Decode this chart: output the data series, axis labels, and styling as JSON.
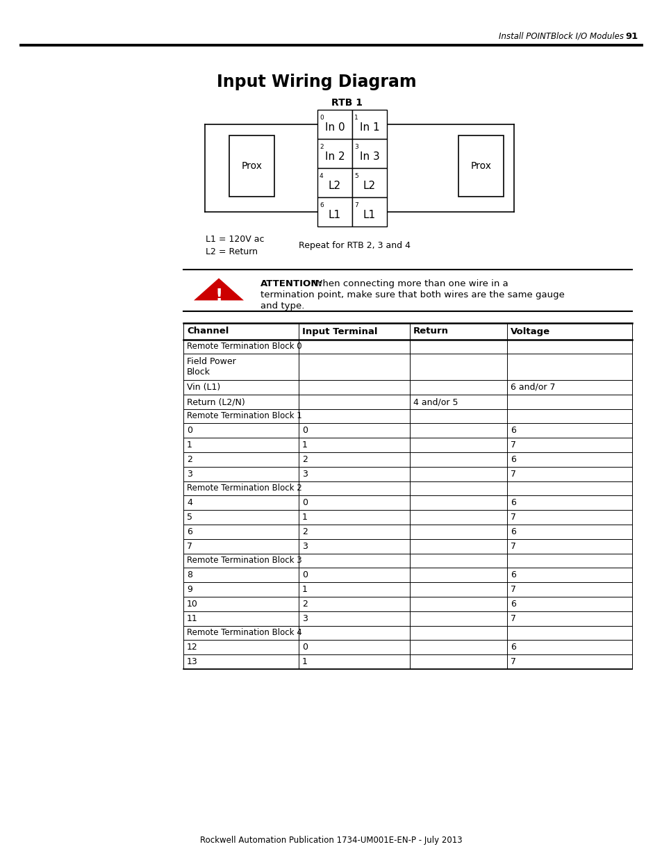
{
  "page_header_text": "Install POINTBlock I/O Modules",
  "page_number": "91",
  "title": "Input Wiring Diagram",
  "rtb_label": "RTB 1",
  "cells": [
    {
      "num": "0",
      "label": "In 0",
      "col": 0,
      "row": 0
    },
    {
      "num": "1",
      "label": "In 1",
      "col": 1,
      "row": 0
    },
    {
      "num": "2",
      "label": "In 2",
      "col": 0,
      "row": 1
    },
    {
      "num": "3",
      "label": "In 3",
      "col": 1,
      "row": 1
    },
    {
      "num": "4",
      "label": "L2",
      "col": 0,
      "row": 2
    },
    {
      "num": "5",
      "label": "L2",
      "col": 1,
      "row": 2
    },
    {
      "num": "6",
      "label": "L1",
      "col": 0,
      "row": 3
    },
    {
      "num": "7",
      "label": "L1",
      "col": 1,
      "row": 3
    }
  ],
  "legend_lines": [
    "L1 = 120V ac",
    "L2 = Return"
  ],
  "repeat_text": "Repeat for RTB 2, 3 and 4",
  "attention_bold": "ATTENTION:",
  "attention_rest": " When connecting more than one wire in a",
  "attention_line2": "termination point, make sure that both wires are the same gauge",
  "attention_line3": "and type.",
  "table_headers": [
    "Channel",
    "Input Terminal",
    "Return",
    "Voltage"
  ],
  "table_data": [
    {
      "type": "section",
      "text": "Remote Termination Block 0"
    },
    {
      "type": "row",
      "cols": [
        "Field Power\nBlock",
        "",
        "",
        ""
      ],
      "multiline": true
    },
    {
      "type": "row",
      "cols": [
        "Vin (L1)",
        "",
        "",
        "6 and/or 7"
      ],
      "multiline": false
    },
    {
      "type": "row",
      "cols": [
        "Return (L2/N)",
        "",
        "4 and/or 5",
        ""
      ],
      "multiline": false
    },
    {
      "type": "section",
      "text": "Remote Termination Block 1"
    },
    {
      "type": "row",
      "cols": [
        "0",
        "0",
        "",
        "6"
      ],
      "multiline": false
    },
    {
      "type": "row",
      "cols": [
        "1",
        "1",
        "",
        "7"
      ],
      "multiline": false
    },
    {
      "type": "row",
      "cols": [
        "2",
        "2",
        "",
        "6"
      ],
      "multiline": false
    },
    {
      "type": "row",
      "cols": [
        "3",
        "3",
        "",
        "7"
      ],
      "multiline": false
    },
    {
      "type": "section",
      "text": "Remote Termination Block 2"
    },
    {
      "type": "row",
      "cols": [
        "4",
        "0",
        "",
        "6"
      ],
      "multiline": false
    },
    {
      "type": "row",
      "cols": [
        "5",
        "1",
        "",
        "7"
      ],
      "multiline": false
    },
    {
      "type": "row",
      "cols": [
        "6",
        "2",
        "",
        "6"
      ],
      "multiline": false
    },
    {
      "type": "row",
      "cols": [
        "7",
        "3",
        "",
        "7"
      ],
      "multiline": false
    },
    {
      "type": "section",
      "text": "Remote Termination Block 3"
    },
    {
      "type": "row",
      "cols": [
        "8",
        "0",
        "",
        "6"
      ],
      "multiline": false
    },
    {
      "type": "row",
      "cols": [
        "9",
        "1",
        "",
        "7"
      ],
      "multiline": false
    },
    {
      "type": "row",
      "cols": [
        "10",
        "2",
        "",
        "6"
      ],
      "multiline": false
    },
    {
      "type": "row",
      "cols": [
        "11",
        "3",
        "",
        "7"
      ],
      "multiline": false
    },
    {
      "type": "section",
      "text": "Remote Termination Block 4"
    },
    {
      "type": "row",
      "cols": [
        "12",
        "0",
        "",
        "6"
      ],
      "multiline": false
    },
    {
      "type": "row",
      "cols": [
        "13",
        "1",
        "",
        "7"
      ],
      "multiline": false
    }
  ],
  "footer_text": "Rockwell Automation Publication 1734-UM001E-EN-P - July 2013",
  "bg_color": "#ffffff",
  "triangle_color": "#cc0000"
}
